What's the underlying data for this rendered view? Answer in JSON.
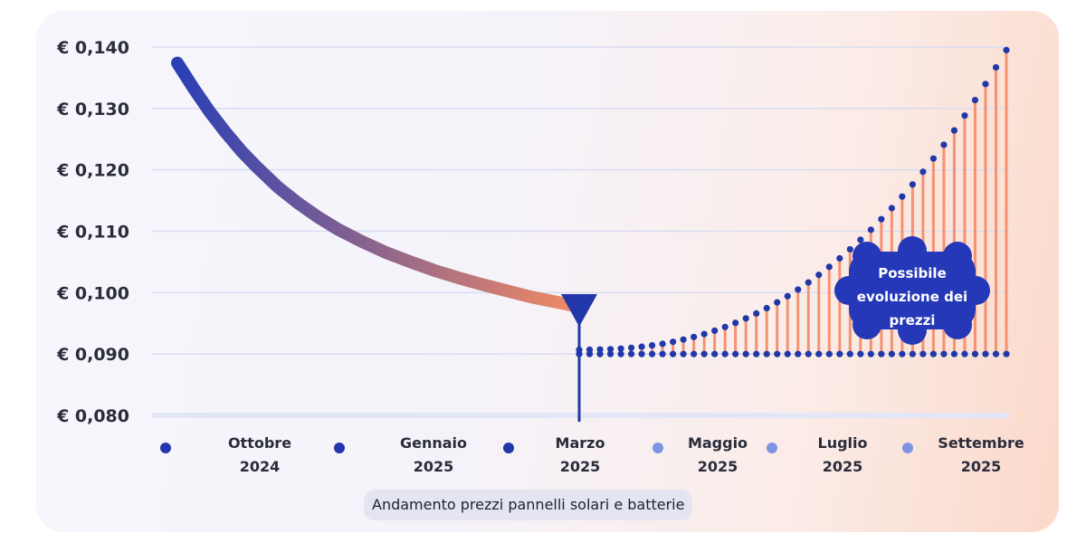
{
  "colors": {
    "historical_start": "#2b3fb5",
    "historical_end": "#f38b63",
    "projection_dots": "#2238a8",
    "projection_bars": "#f59270",
    "marker": "#2238a8",
    "annotation_bg": "#2438b8",
    "legend_dark": "#2238a8",
    "legend_light": "#7e93e3",
    "grid": "#d9dcf2",
    "baseline": "#e2e6f7"
  },
  "chart_data": {
    "type": "line",
    "y_ticks": [
      "€ 0,140",
      "€ 0,130",
      "€ 0,120",
      "€ 0,110",
      "€ 0,100",
      "€ 0,090",
      "€ 0,080"
    ],
    "ylim": [
      0.08,
      0.14
    ],
    "grid": true,
    "x_ticks": [
      {
        "line1": "Ottobre",
        "line2": "2024",
        "dot": "dark"
      },
      {
        "line1": "Gennaio",
        "line2": "2025",
        "dot": "dark"
      },
      {
        "line1": "Marzo",
        "line2": "2025",
        "dot": "dark"
      },
      {
        "line1": "Maggio",
        "line2": "2025",
        "dot": "light"
      },
      {
        "line1": "Luglio",
        "line2": "2025",
        "dot": "light"
      },
      {
        "line1": "Settembre",
        "line2": "2025",
        "dot": "light"
      }
    ],
    "series": [
      {
        "style": "solid-gradient",
        "x": [
          0,
          0.04,
          0.08,
          0.12,
          0.16,
          0.2,
          0.25,
          0.3,
          0.35,
          0.4,
          0.46,
          0.52,
          0.58,
          0.64,
          0.7,
          0.76,
          0.82,
          0.88,
          0.94,
          1.0
        ],
        "values": [
          0.1374,
          0.1333,
          0.1295,
          0.1261,
          0.123,
          0.1203,
          0.1172,
          0.1146,
          0.1123,
          0.1103,
          0.1083,
          0.1065,
          0.105,
          0.1036,
          0.1024,
          0.1013,
          0.1003,
          0.0993,
          0.0985,
          0.0977
        ]
      },
      {
        "style": "dotted-with-bars",
        "x_start": 1.0,
        "x_end": 2.0,
        "points": 42,
        "values_start": 0.0907,
        "values_end": 0.1395
      }
    ],
    "baseline_value": 0.09,
    "marker_x": 1.0,
    "annotation": [
      "Possibile",
      "evoluzione dei",
      "prezzi"
    ],
    "xlabel": "Andamento prezzi pannelli solari e batterie"
  }
}
